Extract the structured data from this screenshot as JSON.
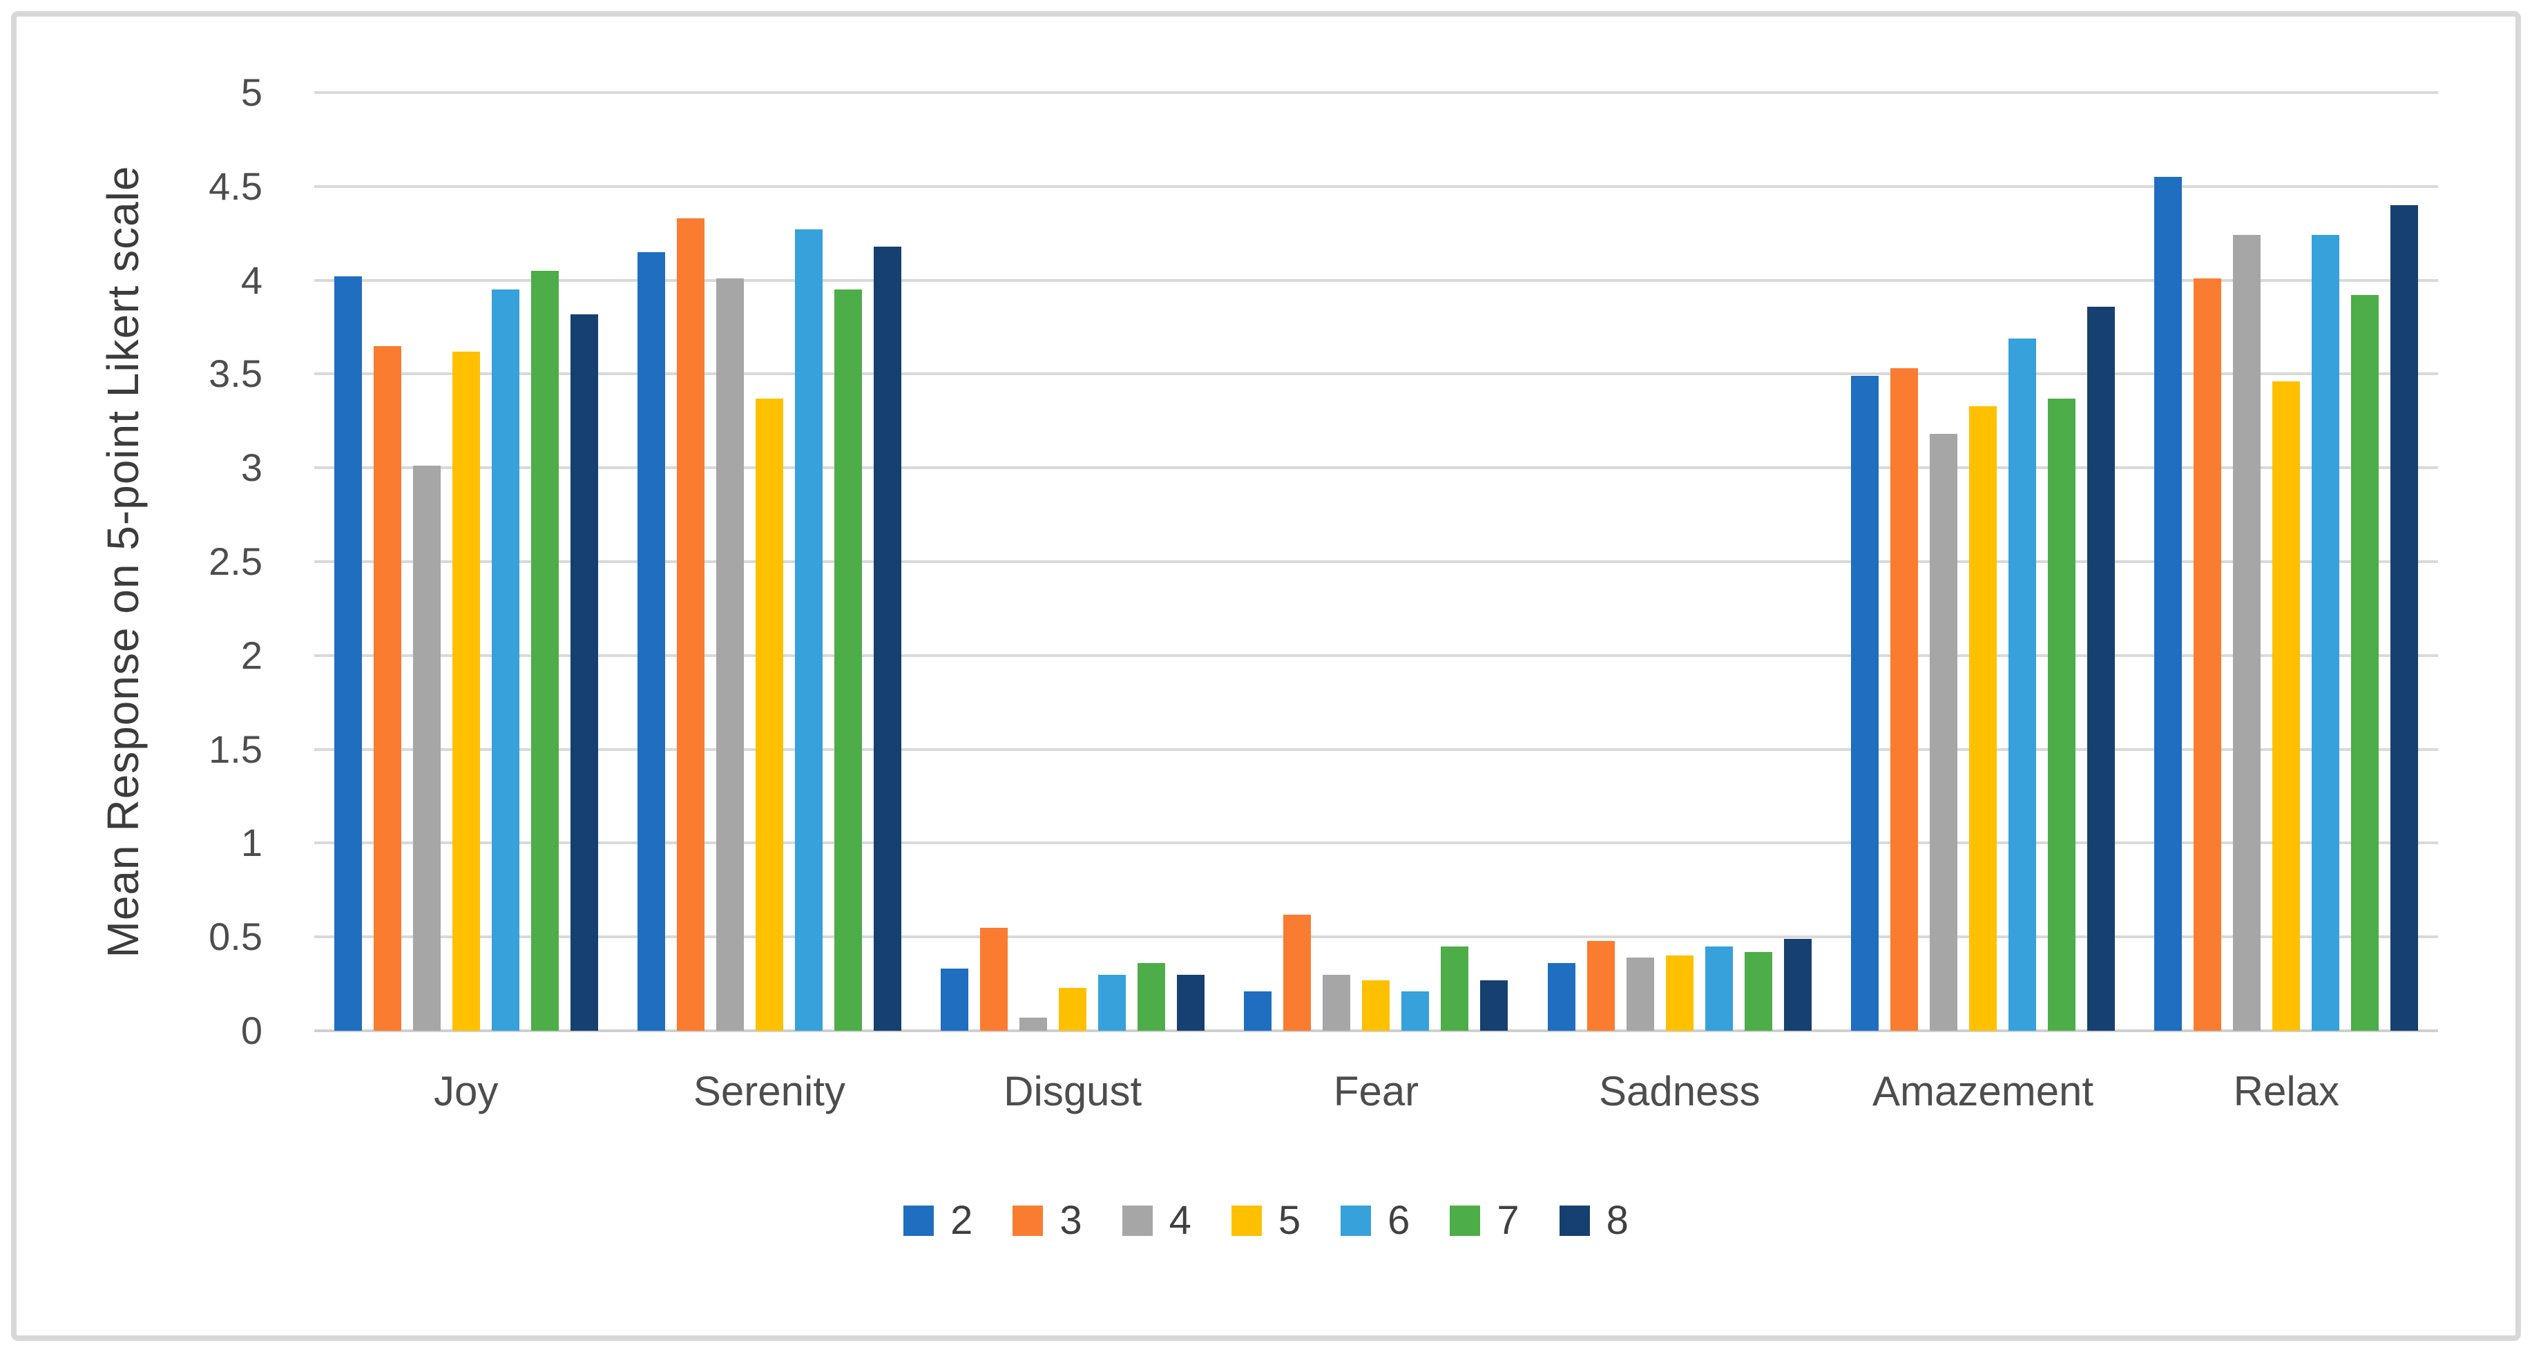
{
  "figure": {
    "border_color": "#D8D8D8",
    "background": "#ffffff"
  },
  "chart_data": {
    "type": "bar",
    "title": "",
    "xlabel": "",
    "ylabel": "Mean Response on 5-point Likert scale",
    "ylim": [
      0,
      5
    ],
    "ytick_step": 0.5,
    "ytick_labels": [
      "0",
      "0.5",
      "1",
      "1.5",
      "2",
      "2.5",
      "3",
      "3.5",
      "4",
      "4.5",
      "5"
    ],
    "grid": "horizontal",
    "legend_position": "bottom",
    "categories": [
      "Joy",
      "Serenity",
      "Disgust",
      "Fear",
      "Sadness",
      "Amazement",
      "Relax"
    ],
    "series": [
      {
        "name": "2",
        "color": "#1F6EC0",
        "values": [
          4.02,
          4.15,
          0.33,
          0.21,
          0.36,
          3.49,
          4.55
        ]
      },
      {
        "name": "3",
        "color": "#F97C31",
        "values": [
          3.65,
          4.33,
          0.55,
          0.62,
          0.48,
          3.53,
          4.01
        ]
      },
      {
        "name": "4",
        "color": "#A6A6A6",
        "values": [
          3.01,
          4.01,
          0.07,
          0.3,
          0.39,
          3.18,
          4.24
        ]
      },
      {
        "name": "5",
        "color": "#FFC000",
        "values": [
          3.62,
          3.37,
          0.23,
          0.27,
          0.4,
          3.33,
          3.46
        ]
      },
      {
        "name": "6",
        "color": "#36A1DB",
        "values": [
          3.95,
          4.27,
          0.3,
          0.21,
          0.45,
          3.69,
          4.24
        ]
      },
      {
        "name": "7",
        "color": "#4CAD49",
        "values": [
          4.05,
          3.95,
          0.36,
          0.45,
          0.42,
          3.37,
          3.92
        ]
      },
      {
        "name": "8",
        "color": "#16406F",
        "values": [
          3.82,
          4.18,
          0.3,
          0.27,
          0.49,
          3.86,
          4.4
        ]
      }
    ]
  }
}
